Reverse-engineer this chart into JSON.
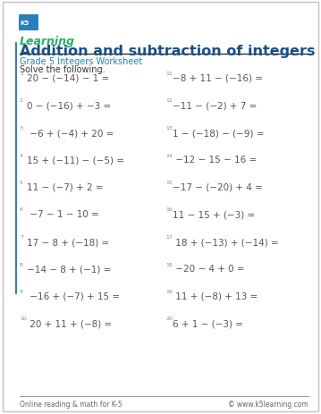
{
  "title": "Addition and subtraction of integers",
  "subtitle": "Grade 5 Integers Worksheet",
  "instruction": "Solve the following.",
  "title_color": "#1a4f8a",
  "subtitle_color": "#2980b9",
  "text_color": "#555555",
  "num_color": "#888888",
  "footer_left": "Online reading & math for K-5",
  "footer_right": "© www.k5learning.com",
  "left_problems": [
    [
      "1",
      "20 − (−14) − 1 ="
    ],
    [
      "2",
      "0 − (−16) + −3 ="
    ],
    [
      "3",
      " −6 + (−4) + 20 ="
    ],
    [
      "4",
      "15 + (−11) − (−5) ="
    ],
    [
      "5",
      "11 − (−7) + 2 ="
    ],
    [
      "6",
      " −7 − 1 − 10 ="
    ],
    [
      "7",
      "17 − 8 + (−18) ="
    ],
    [
      "8",
      "−14 − 8 + (−1) ="
    ],
    [
      "9",
      " −16 + (−7) + 15 ="
    ],
    [
      "10",
      " 20 + 11 + (−8) ="
    ]
  ],
  "right_problems": [
    [
      "11",
      "−8 + 11 − (−16) ="
    ],
    [
      "12",
      "−11 − (−2) + 7 ="
    ],
    [
      "13",
      "1 − (−18) − (−9) ="
    ],
    [
      "14",
      " −12 − 15 − 16 ="
    ],
    [
      "15",
      "−17 − (−20) + 4 ="
    ],
    [
      "16",
      "11 − 15 + (−3) ="
    ],
    [
      "17",
      " 18 + (−13) + (−14) ="
    ],
    [
      "18",
      " −20 − 4 + 0 ="
    ],
    [
      "19",
      " 11 + (−8) + 13 ="
    ],
    [
      "20",
      "6 + 1 − (−3) ="
    ]
  ]
}
